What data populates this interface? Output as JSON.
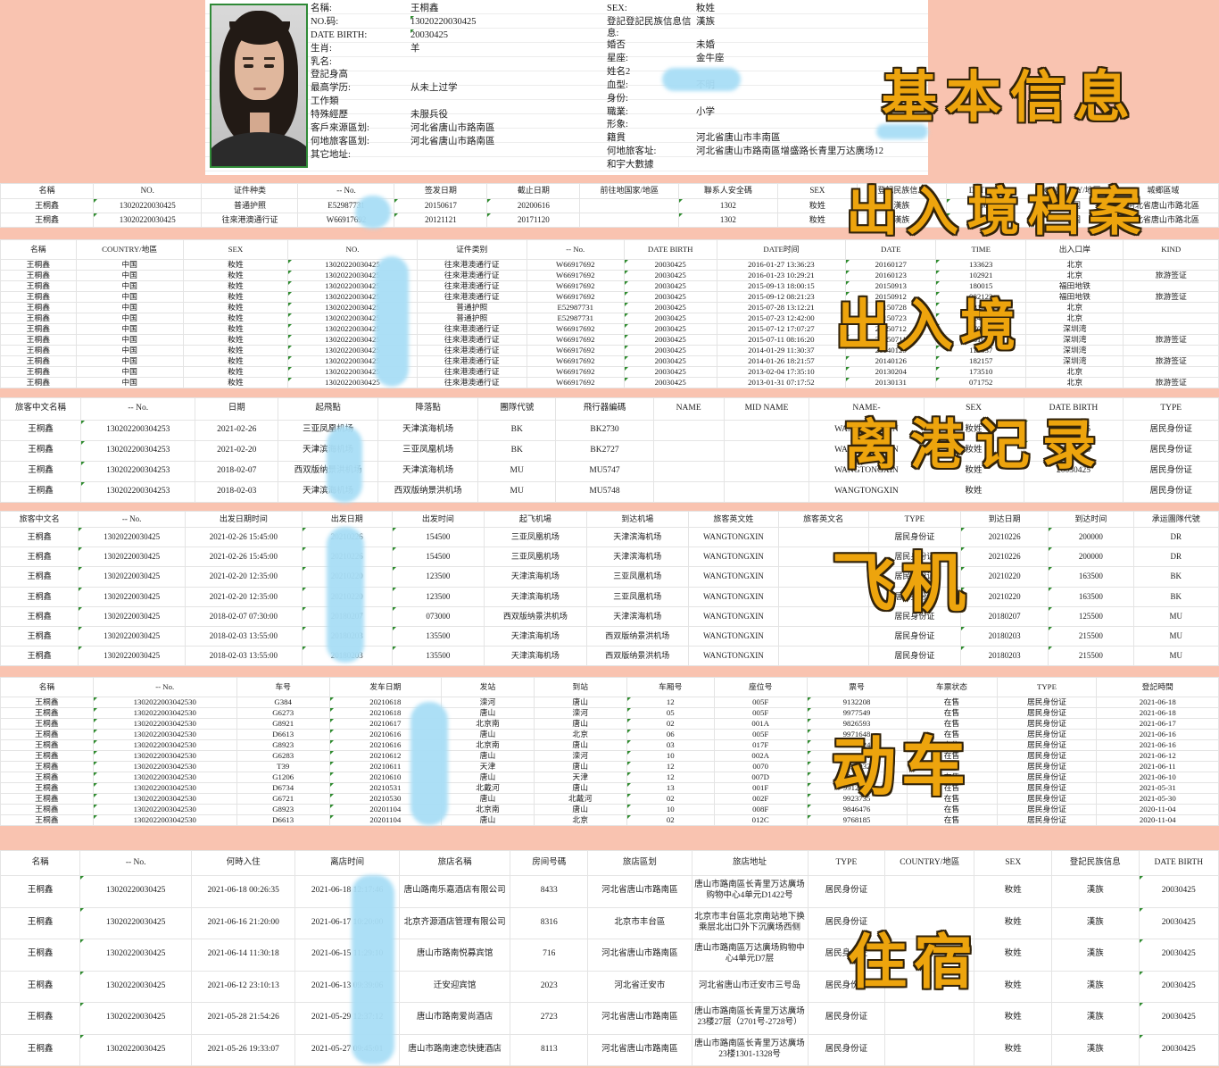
{
  "overlays": {
    "basic": "基本信息",
    "archive": "出入境档案",
    "entry_exit": "出入境",
    "departure": "离港记录",
    "flight": "飞机",
    "train": "动车",
    "hotel": "住宿"
  },
  "profile": {
    "left_fields": [
      {
        "label": "名稱:",
        "value": "王桐鑫"
      },
      {
        "label": "NO.码:",
        "value": "13020220030425",
        "tri": true
      },
      {
        "label": "DATE BIRTH:",
        "value": "20030425",
        "tri": true
      },
      {
        "label": "生肖:",
        "value": "羊"
      },
      {
        "label": "乳名:",
        "value": ""
      },
      {
        "label": "登記身高",
        "value": ""
      },
      {
        "label": "最高学历:",
        "value": "从未上过学"
      },
      {
        "label": "工作類",
        "value": ""
      },
      {
        "label": "特殊經歷",
        "value": "未服兵役"
      },
      {
        "label": "客戶來源區划:",
        "value": "河北省唐山市路南區"
      },
      {
        "label": "何地旅客區划:",
        "value": "河北省唐山市路南區"
      },
      {
        "label": "其它地址:",
        "value": ""
      }
    ],
    "right_fields": [
      {
        "label": "SEX:",
        "value": "籹姓"
      },
      {
        "label": "登記登記民族信息信息:",
        "value": "漢族"
      },
      {
        "label": "婚否",
        "value": "未婚"
      },
      {
        "label": "星座:",
        "value": "金牛座"
      },
      {
        "label": "姓名2",
        "value": ""
      },
      {
        "label": "血型:",
        "value": "不明"
      },
      {
        "label": "身份:",
        "value": ""
      },
      {
        "label": "職業:",
        "value": "小学"
      },
      {
        "label": "形象:",
        "value": ""
      },
      {
        "label": "籍貫",
        "value": "河北省唐山市丰南區"
      },
      {
        "label": "何地旅客址:",
        "value": "河北省唐山市路南區增盛路长青里万达廣场12"
      },
      {
        "label": "和宇大數據",
        "value": ""
      }
    ]
  },
  "tables": {
    "archive": {
      "columns": [
        "名稱",
        "NO.",
        "证件种类",
        "-- No.",
        "签发日期",
        "截止日期",
        "前往地国家/地區",
        "聯系人安全碼",
        "SEX",
        "登記民族信息",
        "DATE BIRTH",
        "COUNTRY/地區",
        "城郷區域"
      ],
      "rows": [
        [
          "王桐鑫",
          "13020220030425",
          "普通护照",
          "E52987731",
          "20150617",
          "20200616",
          "",
          "1302",
          "籹姓",
          "漢族",
          "20030425",
          "中国",
          "河北省唐山市路北區"
        ],
        [
          "王桐鑫",
          "13020220030425",
          "往來港澳通行证",
          "W66917692",
          "20121121",
          "20171120",
          "",
          "1302",
          "籹姓",
          "漢族",
          "20030425",
          "中国",
          "河北省唐山市路北區"
        ]
      ]
    },
    "entry_exit": {
      "columns": [
        "名稱",
        "COUNTRY/地區",
        "SEX",
        "NO.",
        "证件类别",
        "-- No.",
        "DATE BIRTH",
        "DATE时间",
        "DATE",
        "TIME",
        "出入口岸",
        "KIND"
      ],
      "rows": [
        [
          "王桐鑫",
          "中国",
          "籹姓",
          "13020220030425",
          "往來港澳通行证",
          "W66917692",
          "20030425",
          "2016-01-27 13:36:23",
          "20160127",
          "133623",
          "北京",
          ""
        ],
        [
          "王桐鑫",
          "中国",
          "籹姓",
          "13020220030425",
          "往來港澳通行证",
          "W66917692",
          "20030425",
          "2016-01-23 10:29:21",
          "20160123",
          "102921",
          "北京",
          "旅游签证"
        ],
        [
          "王桐鑫",
          "中国",
          "籹姓",
          "13020220030425",
          "往來港澳通行证",
          "W66917692",
          "20030425",
          "2015-09-13 18:00:15",
          "20150913",
          "180015",
          "福田地铁",
          ""
        ],
        [
          "王桐鑫",
          "中国",
          "籹姓",
          "13020220030425",
          "往來港澳通行证",
          "W66917692",
          "20030425",
          "2015-09-12 08:21:23",
          "20150912",
          "082123",
          "福田地铁",
          "旅游签证"
        ],
        [
          "王桐鑫",
          "中国",
          "籹姓",
          "13020220030425",
          "普通护照",
          "E52987731",
          "20030425",
          "2015-07-28 13:12:21",
          "20150728",
          "131221",
          "北京",
          ""
        ],
        [
          "王桐鑫",
          "中国",
          "籹姓",
          "13020220030425",
          "普通护照",
          "E52987731",
          "20030425",
          "2015-07-23 12:42:00",
          "20150723",
          "124200",
          "北京",
          ""
        ],
        [
          "王桐鑫",
          "中国",
          "籹姓",
          "13020220030425",
          "往來港澳通行证",
          "W66917692",
          "20030425",
          "2015-07-12 17:07:27",
          "20150712",
          "170727",
          "深圳湾",
          ""
        ],
        [
          "王桐鑫",
          "中国",
          "籹姓",
          "13020220030425",
          "往來港澳通行证",
          "W66917692",
          "20030425",
          "2015-07-11 08:16:20",
          "20150711",
          "081620",
          "深圳湾",
          "旅游签证"
        ],
        [
          "王桐鑫",
          "中国",
          "籹姓",
          "13020220030425",
          "往來港澳通行证",
          "W66917692",
          "20030425",
          "2014-01-29 11:30:37",
          "20140129",
          "113037",
          "深圳湾",
          ""
        ],
        [
          "王桐鑫",
          "中国",
          "籹姓",
          "13020220030425",
          "往來港澳通行证",
          "W66917692",
          "20030425",
          "2014-01-26 18:21:57",
          "20140126",
          "182157",
          "深圳湾",
          "旅游签证"
        ],
        [
          "王桐鑫",
          "中国",
          "籹姓",
          "13020220030425",
          "往來港澳通行证",
          "W66917692",
          "20030425",
          "2013-02-04 17:35:10",
          "20130204",
          "173510",
          "北京",
          ""
        ],
        [
          "王桐鑫",
          "中国",
          "籹姓",
          "13020220030425",
          "往來港澳通行证",
          "W66917692",
          "20030425",
          "2013-01-31 07:17:52",
          "20130131",
          "071752",
          "北京",
          "旅游签证"
        ]
      ]
    },
    "departure": {
      "columns": [
        "旅客中文名稱",
        "-- No.",
        "日期",
        "起飛點",
        "降落點",
        "團隊代號",
        "飛行器編碼",
        "NAME",
        "MID NAME",
        "NAME-",
        "SEX",
        "DATE BIRTH",
        "TYPE"
      ],
      "rows": [
        [
          "王桐鑫",
          "130202200304253",
          "2021-02-26",
          "三亚凤凰机场",
          "天津滨海机场",
          "BK",
          "BK2730",
          "",
          "",
          "WANGTONGXIN",
          "籹姓",
          "20030425",
          "居民身份证"
        ],
        [
          "王桐鑫",
          "130202200304253",
          "2021-02-20",
          "天津滨海机场",
          "三亚凤凰机场",
          "BK",
          "BK2727",
          "",
          "",
          "WANGTONGXIN",
          "籹姓",
          "20030425",
          "居民身份证"
        ],
        [
          "王桐鑫",
          "130202200304253",
          "2018-02-07",
          "西双版纳景洪机场",
          "天津滨海机场",
          "MU",
          "MU5747",
          "",
          "",
          "WANGTONGXIN",
          "籹姓",
          "20030425",
          "居民身份证"
        ],
        [
          "王桐鑫",
          "130202200304253",
          "2018-02-03",
          "天津滨海机场",
          "西双版纳景洪机场",
          "MU",
          "MU5748",
          "",
          "",
          "WANGTONGXIN",
          "籹姓",
          "",
          "居民身份证"
        ]
      ]
    },
    "flight": {
      "columns": [
        "旅客中文名",
        "-- No.",
        "出发日期时间",
        "出发日期",
        "出发时间",
        "起飞机場",
        "到达机場",
        "旅客英文姓",
        "旅客英文名",
        "TYPE",
        "到达日期",
        "到达时间",
        "承运團隊代號"
      ],
      "rows": [
        [
          "王桐鑫",
          "13020220030425",
          "2021-02-26 15:45:00",
          "20210226",
          "154500",
          "三亚凤凰机场",
          "天津滨海机场",
          "WANGTONGXIN",
          "",
          "居民身份证",
          "20210226",
          "200000",
          "DR"
        ],
        [
          "王桐鑫",
          "13020220030425",
          "2021-02-26 15:45:00",
          "20210226",
          "154500",
          "三亚凤凰机场",
          "天津滨海机场",
          "WANGTONGXIN",
          "",
          "居民身份证",
          "20210226",
          "200000",
          "DR"
        ],
        [
          "王桐鑫",
          "13020220030425",
          "2021-02-20 12:35:00",
          "20210220",
          "123500",
          "天津滨海机场",
          "三亚凤凰机场",
          "WANGTONGXIN",
          "",
          "居民身份证",
          "20210220",
          "163500",
          "BK"
        ],
        [
          "王桐鑫",
          "13020220030425",
          "2021-02-20 12:35:00",
          "20210220",
          "123500",
          "天津滨海机场",
          "三亚凤凰机场",
          "WANGTONGXIN",
          "",
          "居民身份证",
          "20210220",
          "163500",
          "BK"
        ],
        [
          "王桐鑫",
          "13020220030425",
          "2018-02-07 07:30:00",
          "20180207",
          "073000",
          "西双版纳景洪机场",
          "天津滨海机场",
          "WANGTONGXIN",
          "",
          "居民身份证",
          "20180207",
          "125500",
          "MU"
        ],
        [
          "王桐鑫",
          "13020220030425",
          "2018-02-03 13:55:00",
          "20180203",
          "135500",
          "天津滨海机场",
          "西双版纳景洪机场",
          "WANGTONGXIN",
          "",
          "居民身份证",
          "20180203",
          "215500",
          "MU"
        ],
        [
          "王桐鑫",
          "13020220030425",
          "2018-02-03 13:55:00",
          "20180203",
          "135500",
          "天津滨海机场",
          "西双版纳景洪机场",
          "WANGTONGXIN",
          "",
          "居民身份证",
          "20180203",
          "215500",
          "MU"
        ]
      ]
    },
    "train": {
      "columns": [
        "名稱",
        "-- No.",
        "车号",
        "发车日期",
        "发站",
        "到站",
        "车厢号",
        "座位号",
        "票号",
        "车票状态",
        "TYPE",
        "登記時間"
      ],
      "rows": [
        [
          "王桐鑫",
          "1302022003042530",
          "G384",
          "20210618",
          "滦河",
          "唐山",
          "12",
          "005F",
          "9132208",
          "在售",
          "居民身份证",
          "2021-06-18"
        ],
        [
          "王桐鑫",
          "1302022003042530",
          "G6273",
          "20210618",
          "唐山",
          "滦河",
          "05",
          "005F",
          "9977549",
          "在售",
          "居民身份证",
          "2021-06-18"
        ],
        [
          "王桐鑫",
          "1302022003042530",
          "G8921",
          "20210617",
          "北京南",
          "唐山",
          "02",
          "001A",
          "9826593",
          "在售",
          "居民身份证",
          "2021-06-17"
        ],
        [
          "王桐鑫",
          "1302022003042530",
          "D6613",
          "20210616",
          "唐山",
          "北京",
          "06",
          "005F",
          "9971648",
          "在售",
          "居民身份证",
          "2021-06-16"
        ],
        [
          "王桐鑫",
          "1302022003042530",
          "G8923",
          "20210616",
          "北京南",
          "唐山",
          "03",
          "017F",
          "9804924",
          "在售",
          "居民身份证",
          "2021-06-16"
        ],
        [
          "王桐鑫",
          "1302022003042530",
          "G6283",
          "20210612",
          "唐山",
          "滦河",
          "10",
          "002A",
          "9571438",
          "在售",
          "居民身份证",
          "2021-06-12"
        ],
        [
          "王桐鑫",
          "1302022003042530",
          "T39",
          "20210611",
          "天津",
          "唐山",
          "12",
          "0070",
          "9512932",
          "在售",
          "居民身份证",
          "2021-06-11"
        ],
        [
          "王桐鑫",
          "1302022003042530",
          "G1206",
          "20210610",
          "唐山",
          "天津",
          "12",
          "007D",
          "9583995",
          "在售",
          "居民身份证",
          "2021-06-10"
        ],
        [
          "王桐鑫",
          "1302022003042530",
          "D6734",
          "20210531",
          "北戴河",
          "唐山",
          "13",
          "001F",
          "9912611",
          "在售",
          "居民身份证",
          "2021-05-31"
        ],
        [
          "王桐鑫",
          "1302022003042530",
          "G6721",
          "20210530",
          "唐山",
          "北戴河",
          "02",
          "002F",
          "9923735",
          "在售",
          "居民身份证",
          "2021-05-30"
        ],
        [
          "王桐鑫",
          "1302022003042530",
          "G8923",
          "20201104",
          "北京南",
          "唐山",
          "10",
          "008F",
          "9846476",
          "在售",
          "居民身份证",
          "2020-11-04"
        ],
        [
          "王桐鑫",
          "1302022003042530",
          "D6613",
          "20201104",
          "唐山",
          "北京",
          "02",
          "012C",
          "9768185",
          "在售",
          "居民身份证",
          "2020-11-04"
        ]
      ]
    },
    "hotel": {
      "columns": [
        "名稱",
        "-- No.",
        "何時入住",
        "离店时间",
        "旅店名稱",
        "房间号碼",
        "旅店區划",
        "旅店地址",
        "TYPE",
        "COUNTRY/地區",
        "SEX",
        "登記民族信息",
        "DATE BIRTH"
      ],
      "rows": [
        [
          "王桐鑫",
          "13020220030425",
          "2021-06-18 00:26:35",
          "2021-06-18 12:17:46",
          "唐山路南乐嘉酒店有限公司",
          "8433",
          "河北省唐山市路南區",
          "唐山市路南區长青里万达廣场购物中心4单元D1422号",
          "居民身份证",
          "",
          "籹姓",
          "漢族",
          "20030425"
        ],
        [
          "王桐鑫",
          "13020220030425",
          "2021-06-16 21:20:00",
          "2021-06-17 10:20:00",
          "北京齐源酒店管理有限公司",
          "8316",
          "北京市丰台區",
          "北京市丰台區北京南站地下换乘层北出口外下沉廣场西侧",
          "居民身份证",
          "",
          "籹姓",
          "漢族",
          "20030425"
        ],
        [
          "王桐鑫",
          "13020220030425",
          "2021-06-14 11:30:18",
          "2021-06-15 11:29:10",
          "唐山市路南悦募宾馆",
          "716",
          "河北省唐山市路南區",
          "唐山市路南區万达廣场购物中心4单元D7层",
          "居民身份证",
          "",
          "籹姓",
          "漢族",
          "20030425"
        ],
        [
          "王桐鑫",
          "13020220030425",
          "2021-06-12 23:10:13",
          "2021-06-13 09:39:06",
          "迁安迎宾馆",
          "2023",
          "河北省迁安市",
          "河北省唐山市迁安市三号岛",
          "居民身份证",
          "",
          "籹姓",
          "漢族",
          "20030425"
        ],
        [
          "王桐鑫",
          "13020220030425",
          "2021-05-28 21:54:26",
          "2021-05-29 12:37:12",
          "唐山市路南爱尚酒店",
          "2723",
          "河北省唐山市路南區",
          "唐山市路南區长青里万达廣场23楼27层（2701号-2728号）",
          "居民身份证",
          "",
          "籹姓",
          "漢族",
          "20030425"
        ],
        [
          "王桐鑫",
          "13020220030425",
          "2021-05-26 19:33:07",
          "2021-05-27 09:45:01",
          "唐山市路南速恋快捷酒店",
          "8113",
          "河北省唐山市路南區",
          "唐山市路南區长青里万达廣场23楼1301-1328号",
          "居民身份证",
          "",
          "籹姓",
          "漢族",
          "20030425"
        ]
      ]
    }
  }
}
